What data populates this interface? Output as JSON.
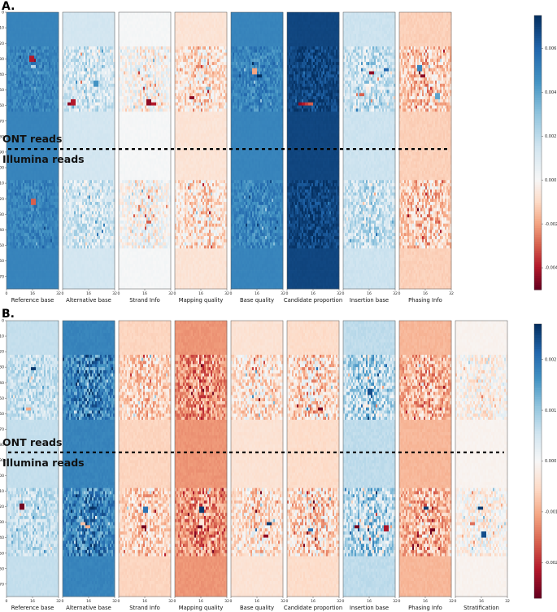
{
  "chart_data": [
    {
      "type": "heatmap",
      "panel_label": "A.",
      "y_ticks": [
        "0",
        "10",
        "20",
        "30",
        "40",
        "50",
        "60",
        "70",
        "80",
        "90",
        "100",
        "110",
        "120",
        "130",
        "140",
        "150",
        "160",
        "170"
      ],
      "ylim": [
        0,
        178
      ],
      "x_ticks": [
        "0",
        "16",
        "32"
      ],
      "xlim": [
        0,
        32
      ],
      "section_labels": {
        "top": "ONT reads",
        "bottom": "Illumina reads"
      },
      "divider_row": 88,
      "colorbar": {
        "ticks": [
          "0.006",
          "0.004",
          "0.002",
          "0.000",
          "-0.002",
          "-0.004"
        ],
        "vmin": -0.005,
        "vmax": 0.0075
      },
      "channels": [
        {
          "label": "Reference base",
          "base_value": 0.005,
          "noise": 0.0009,
          "spikes": [
            [
              30,
              16,
              -0.0045
            ],
            [
              29,
              15,
              -0.004
            ],
            [
              121,
              16,
              -0.003
            ],
            [
              34,
              16,
              0.0022
            ]
          ]
        },
        {
          "label": "Alternative base",
          "base_value": 0.0014,
          "noise": 0.002,
          "spikes": [
            [
              58,
              4,
              -0.0045
            ],
            [
              57,
              6,
              -0.004
            ],
            [
              45,
              20,
              0.0045
            ]
          ]
        },
        {
          "label": "Strand Info",
          "base_value": 0.0001,
          "noise": 0.0018,
          "spikes": [
            [
              57,
              18,
              -0.0045
            ],
            [
              58,
              21,
              -0.004
            ],
            [
              134,
              18,
              -0.003
            ]
          ]
        },
        {
          "label": "Mapping quality",
          "base_value": -0.0007,
          "noise": 0.002,
          "spikes": [
            [
              54,
              10,
              -0.0045
            ],
            [
              48,
              20,
              0.003
            ]
          ]
        },
        {
          "label": "Base quality",
          "base_value": 0.005,
          "noise": 0.0012,
          "spikes": [
            [
              40,
              17,
              0.0075
            ],
            [
              37,
              14,
              -0.002
            ]
          ]
        },
        {
          "label": "Candidate proportion",
          "base_value": 0.0069,
          "noise": 0.001,
          "spikes": [
            [
              58,
              8,
              -0.0045
            ],
            [
              58,
              10,
              -0.004
            ],
            [
              58,
              12,
              -0.0035
            ],
            [
              58,
              14,
              -0.003
            ]
          ]
        },
        {
          "label": "Insertion base",
          "base_value": 0.0016,
          "noise": 0.0022,
          "spikes": [
            [
              38,
              17,
              -0.0045
            ],
            [
              52,
              11,
              -0.003
            ],
            [
              36,
              26,
              0.006
            ]
          ]
        },
        {
          "label": "Phasing Info",
          "base_value": -0.0012,
          "noise": 0.002,
          "spikes": [
            [
              40,
              14,
              -0.0045
            ],
            [
              35,
              12,
              0.005
            ],
            [
              53,
              23,
              0.004
            ]
          ]
        }
      ]
    },
    {
      "type": "heatmap",
      "panel_label": "B.",
      "y_ticks": [
        "0",
        "10",
        "20",
        "30",
        "40",
        "50",
        "60",
        "70",
        "80",
        "90",
        "100",
        "110",
        "120",
        "130",
        "140",
        "150",
        "160",
        "170"
      ],
      "ylim": [
        0,
        178
      ],
      "x_ticks": [
        "0",
        "16",
        "32"
      ],
      "xlim": [
        0,
        32
      ],
      "section_labels": {
        "top": "ONT reads",
        "bottom": "Illumina reads"
      },
      "divider_row": 85,
      "colorbar": {
        "ticks": [
          "0.002",
          "0.001",
          "0.000",
          "-0.001",
          "-0.002"
        ],
        "vmin": -0.0027,
        "vmax": 0.0027
      },
      "channels": [
        {
          "label": "Reference base",
          "base_value": 0.00065,
          "noise": 0.0006,
          "spikes": [
            [
              30,
              16,
              0.0026
            ],
            [
              119,
              9,
              -0.0026
            ],
            [
              56,
              13,
              -0.001
            ]
          ]
        },
        {
          "label": "Alternative base",
          "base_value": 0.0018,
          "noise": 0.0009,
          "spikes": [
            [
              132,
              15,
              -0.001
            ],
            [
              130,
              12,
              -0.0008
            ]
          ]
        },
        {
          "label": "Strand Info",
          "base_value": -0.0006,
          "noise": 0.0009,
          "spikes": [
            [
              132,
              15,
              -0.0026
            ],
            [
              121,
              16,
              0.002
            ]
          ]
        },
        {
          "label": "Mapping quality",
          "base_value": -0.0012,
          "noise": 0.001,
          "spikes": [
            [
              121,
              16,
              0.0026
            ],
            [
              132,
              15,
              -0.0026
            ]
          ]
        },
        {
          "label": "Base quality",
          "base_value": -0.0004,
          "noise": 0.001,
          "spikes": [
            [
              130,
              23,
              0.0026
            ],
            [
              138,
              21,
              -0.0024
            ]
          ]
        },
        {
          "label": "Candidate proportion",
          "base_value": -0.0005,
          "noise": 0.0012,
          "spikes": [
            [
              56,
              20,
              -0.0026
            ],
            [
              134,
              14,
              0.002
            ]
          ]
        },
        {
          "label": "Insertion base",
          "base_value": 0.0007,
          "noise": 0.0012,
          "spikes": [
            [
              132,
              8,
              -0.0026
            ],
            [
              133,
              26,
              -0.0022
            ],
            [
              45,
              16,
              0.0024
            ]
          ]
        },
        {
          "label": "Phasing Info",
          "base_value": -0.0009,
          "noise": 0.001,
          "spikes": [
            [
              120,
              16,
              0.0026
            ],
            [
              134,
              20,
              -0.0026
            ]
          ]
        },
        {
          "label": "Stratification",
          "base_value": -0.0001,
          "noise": 0.0007,
          "spikes": [
            [
              120,
              15,
              0.0026
            ],
            [
              137,
              17,
              0.0024
            ],
            [
              130,
              10,
              -0.0015
            ]
          ]
        }
      ]
    }
  ]
}
